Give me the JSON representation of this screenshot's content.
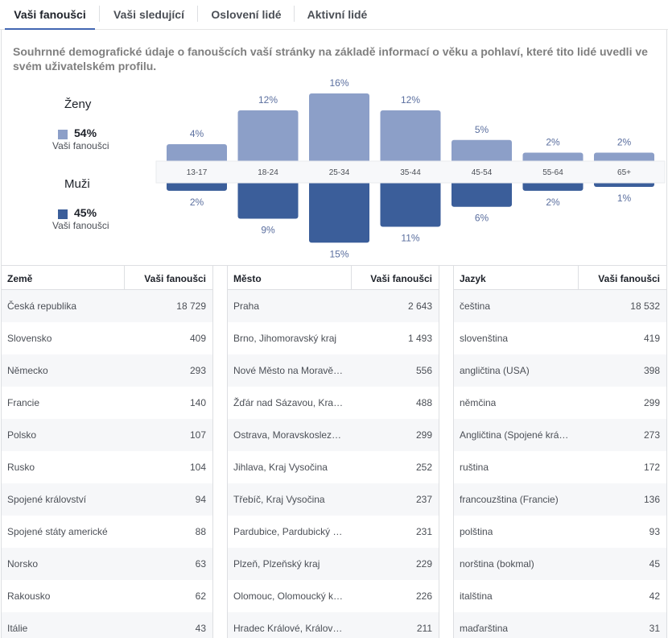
{
  "tabs": [
    {
      "label": "Vaši fanoušci"
    },
    {
      "label": "Vaši sledující"
    },
    {
      "label": "Oslovení lidé"
    },
    {
      "label": "Aktivní lidé"
    }
  ],
  "description": "Souhrnné demografické údaje o fanoušcích vaší stránky na základě informací o věku a pohlaví, které tito lidé uvedli ve svém uživatelském profilu.",
  "women": {
    "title": "Ženy",
    "percent": "54%",
    "sub": "Vaši fanoušci",
    "color": "#8c9fc8"
  },
  "men": {
    "title": "Muži",
    "percent": "45%",
    "sub": "Vaši fanoušci",
    "color": "#3b5e9a"
  },
  "chart_data": {
    "type": "bar",
    "categories": [
      "13-17",
      "18-24",
      "25-34",
      "35-44",
      "45-54",
      "55-64",
      "65+"
    ],
    "series": [
      {
        "name": "Ženy",
        "values": [
          4,
          12,
          16,
          12,
          5,
          2,
          2
        ],
        "labels": [
          "4%",
          "12%",
          "16%",
          "12%",
          "5%",
          "2%",
          "2%"
        ]
      },
      {
        "name": "Muži",
        "values": [
          2,
          9,
          15,
          11,
          6,
          2,
          1
        ],
        "labels": [
          "2%",
          "9%",
          "15%",
          "11%",
          "6%",
          "2%",
          "1%"
        ]
      }
    ]
  },
  "tables": [
    {
      "h1": "Země",
      "h2": "Vaši fanoušci",
      "rows": [
        [
          "Česká republika",
          "18 729"
        ],
        [
          "Slovensko",
          "409"
        ],
        [
          "Německo",
          "293"
        ],
        [
          "Francie",
          "140"
        ],
        [
          "Polsko",
          "107"
        ],
        [
          "Rusko",
          "104"
        ],
        [
          "Spojené království",
          "94"
        ],
        [
          "Spojené státy americké",
          "88"
        ],
        [
          "Norsko",
          "63"
        ],
        [
          "Rakousko",
          "62"
        ],
        [
          "Itálie",
          "43"
        ]
      ]
    },
    {
      "h1": "Město",
      "h2": "Vaši fanoušci",
      "rows": [
        [
          "Praha",
          "2 643"
        ],
        [
          "Brno, Jihomoravský kraj",
          "1 493"
        ],
        [
          "Nové Město na Moravě…",
          "556"
        ],
        [
          "Žďár nad Sázavou, Kra…",
          "488"
        ],
        [
          "Ostrava, Moravskoslez…",
          "299"
        ],
        [
          "Jihlava, Kraj Vysočina",
          "252"
        ],
        [
          "Třebíč, Kraj Vysočina",
          "237"
        ],
        [
          "Pardubice, Pardubický …",
          "231"
        ],
        [
          "Plzeň, Plzeňský kraj",
          "229"
        ],
        [
          "Olomouc, Olomoucký k…",
          "226"
        ],
        [
          "Hradec Králové, Králov…",
          "211"
        ]
      ]
    },
    {
      "h1": "Jazyk",
      "h2": "Vaši fanoušci",
      "rows": [
        [
          "čeština",
          "18 532"
        ],
        [
          "slovenština",
          "419"
        ],
        [
          "angličtina (USA)",
          "398"
        ],
        [
          "němčina",
          "299"
        ],
        [
          "Angličtina (Spojené krá…",
          "273"
        ],
        [
          "ruština",
          "172"
        ],
        [
          "francouzština (Francie)",
          "136"
        ],
        [
          "polština",
          "93"
        ],
        [
          "norština (bokmal)",
          "45"
        ],
        [
          "italština",
          "42"
        ],
        [
          "maďarština",
          "31"
        ]
      ]
    }
  ]
}
